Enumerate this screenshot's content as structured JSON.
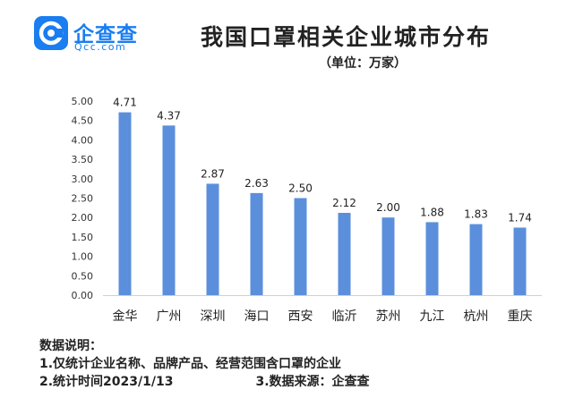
{
  "brand": {
    "name": "企查查",
    "domain_text": "Qcc.com",
    "color": "#1a7df0"
  },
  "chart_data": {
    "type": "bar",
    "title": "我国口罩相关企业城市分布",
    "unit": "（单位：万家）",
    "categories": [
      "金华",
      "广州",
      "深圳",
      "海口",
      "西安",
      "临沂",
      "苏州",
      "九江",
      "杭州",
      "重庆"
    ],
    "values": [
      4.71,
      4.37,
      2.87,
      2.63,
      2.5,
      2.12,
      2.0,
      1.88,
      1.83,
      1.74
    ],
    "value_labels": [
      "4.71",
      "4.37",
      "2.87",
      "2.63",
      "2.50",
      "2.12",
      "2.00",
      "1.88",
      "1.83",
      "1.74"
    ],
    "yticks": [
      "0.00",
      "0.50",
      "1.00",
      "1.50",
      "2.00",
      "2.50",
      "3.00",
      "3.50",
      "4.00",
      "4.50",
      "5.00"
    ],
    "ylim": [
      0,
      5
    ],
    "bar_color": "#5b8fdc",
    "grid": false,
    "legend": "none"
  },
  "notes": {
    "heading": "数据说明：",
    "line1": "1.仅统计企业名称、品牌产品、经营范围含口罩的企业",
    "line2": "2.统计时间2023/1/13",
    "line3": "3.数据来源：企查查"
  }
}
